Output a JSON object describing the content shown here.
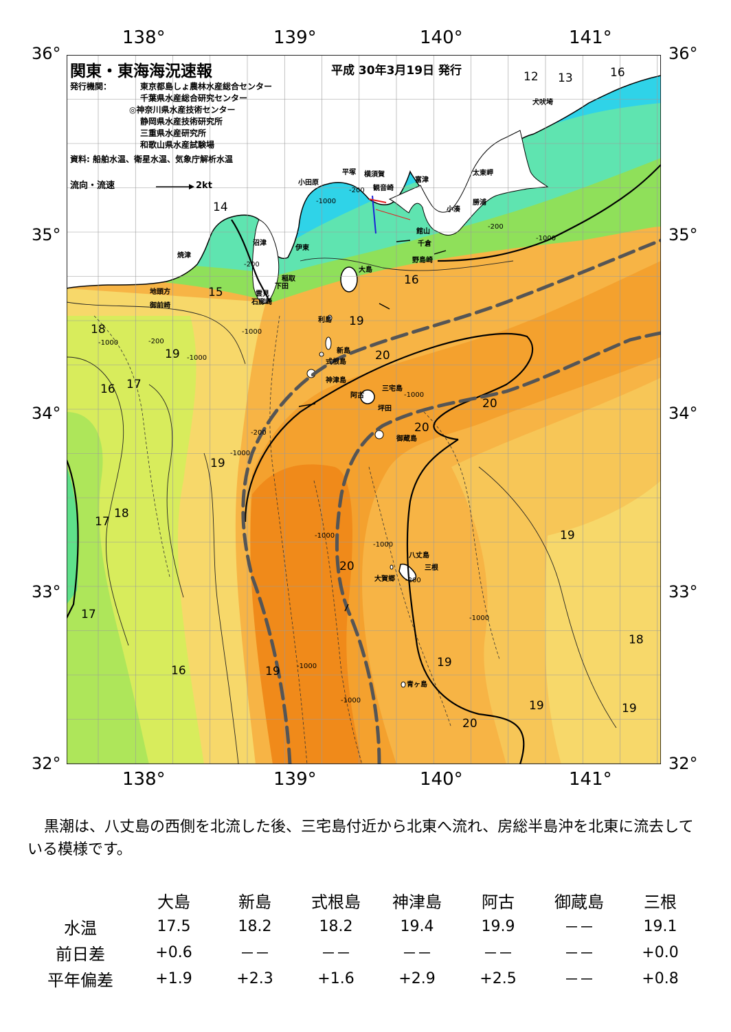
{
  "header": {
    "title": "関東・東海海況速報",
    "date": "平成 30年3月19日 発行",
    "issuer_label": "発行機関：",
    "issuers": [
      "東京都島しょ農林水産総合センター",
      "千葉県水産総合研究センター",
      "◎神奈川県水産技術センター",
      "静岡県水産技術研究所",
      "三重県水産研究所",
      "和歌山県水産試験場"
    ],
    "source": "資料: 船舶水温、衛星水温、気象庁解析水温",
    "legend_label": "流向・流速",
    "legend_speed": "2kt"
  },
  "axes": {
    "lon_labels": [
      "138°",
      "139°",
      "140°",
      "141°"
    ],
    "lat_labels": [
      "36°",
      "35°",
      "34°",
      "33°",
      "32°"
    ]
  },
  "places": [
    {
      "name": "小田原"
    },
    {
      "name": "平塚"
    },
    {
      "name": "横須賀"
    },
    {
      "name": "観音崎"
    },
    {
      "name": "富津"
    },
    {
      "name": "太東岬"
    },
    {
      "name": "勝浦"
    },
    {
      "name": "小湊"
    },
    {
      "name": "犬吠埼"
    },
    {
      "name": "館山"
    },
    {
      "name": "千倉"
    },
    {
      "name": "野島崎"
    },
    {
      "name": "沼津"
    },
    {
      "name": "伊東"
    },
    {
      "name": "焼津"
    },
    {
      "name": "稲取"
    },
    {
      "name": "下田"
    },
    {
      "name": "雲見"
    },
    {
      "name": "石廊崎"
    },
    {
      "name": "地頭方"
    },
    {
      "name": "御前崎"
    },
    {
      "name": "大島"
    },
    {
      "name": "利島"
    },
    {
      "name": "新島"
    },
    {
      "name": "式根島"
    },
    {
      "name": "神津島"
    },
    {
      "name": "三宅島"
    },
    {
      "name": "阿古"
    },
    {
      "name": "坪田"
    },
    {
      "name": "御蔵島"
    },
    {
      "name": "八丈島"
    },
    {
      "name": "三根"
    },
    {
      "name": "大賀郷"
    },
    {
      "name": "青ヶ島"
    }
  ],
  "isotherm_labels": [
    "12",
    "13",
    "16",
    "14",
    "15",
    "16",
    "18",
    "19",
    "19",
    "16",
    "17",
    "20",
    "20",
    "20",
    "19",
    "17",
    "18",
    "20",
    "19",
    "17",
    "16",
    "19",
    "19",
    "19",
    "20",
    "18",
    "19"
  ],
  "depth_labels": [
    "-200",
    "-1000",
    "-200",
    "-1000",
    "-200",
    "-1000",
    "-200",
    "-1000",
    "-1000",
    "-1000",
    "-200",
    "-1000",
    "-1000",
    "-1000",
    "-1000",
    "-1000",
    "-200",
    "-1000"
  ],
  "colors": {
    "land": "#ffffff",
    "cold": "#2fd3e8",
    "cool": "#5fe4b0",
    "green": "#8fe05a",
    "yellowgreen": "#d8ec5c",
    "yellow": "#f7d86a",
    "lightorange": "#f7b445",
    "orange": "#f4a12e",
    "deeporange": "#f08a1a",
    "kuroshio_axis": "#555555"
  },
  "summary": "黒潮は、八丈島の西側を北流した後、三宅島付近から北東へ流れ、房総半島沖を北東に流去している模様です。",
  "observations": {
    "columns": [
      "大島",
      "新島",
      "式根島",
      "神津島",
      "阿古",
      "御蔵島",
      "三根"
    ],
    "rows": [
      {
        "label": "水温",
        "values": [
          "17.5",
          "18.2",
          "18.2",
          "19.4",
          "19.9",
          "－－",
          "19.1"
        ]
      },
      {
        "label": "前日差",
        "values": [
          "+0.6",
          "－－",
          "－－",
          "－－",
          "－－",
          "－－",
          "+0.0"
        ]
      },
      {
        "label": "平年偏差",
        "values": [
          "+1.9",
          "+2.3",
          "+1.6",
          "+2.9",
          "+2.5",
          "－－",
          "+0.8"
        ]
      }
    ]
  }
}
